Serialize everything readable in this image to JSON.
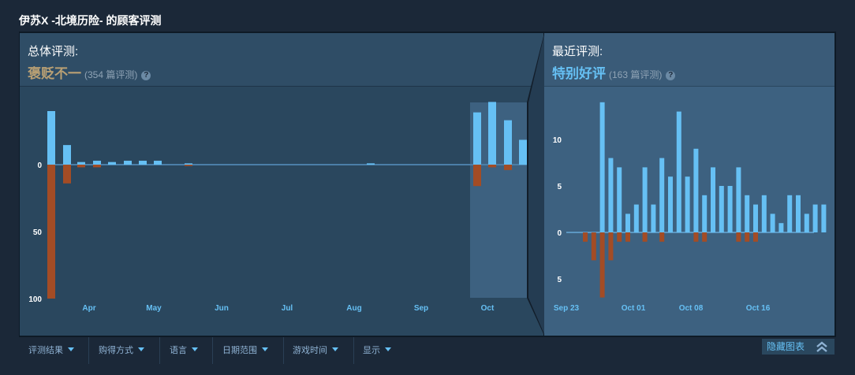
{
  "page_title": "伊苏X -北境历险- 的顾客评测",
  "overall": {
    "label": "总体评测:",
    "rating": "褒贬不一",
    "count": "(354 篇评测)",
    "help": "?"
  },
  "recent": {
    "label": "最近评测:",
    "rating": "特别好评",
    "count": "(163 篇评测)",
    "help": "?"
  },
  "filters": [
    "评测结果",
    "购得方式",
    "语言",
    "日期范围",
    "游戏时间",
    "显示"
  ],
  "hide_graph_label": "隐藏图表",
  "colors": {
    "positive": "#66c0f4",
    "negative": "#a34c25",
    "selection": "#3d6180"
  },
  "chart_data": [
    {
      "type": "bar",
      "title": "",
      "x_ticks": [
        "Apr",
        "May",
        "Jun",
        "Jul",
        "Aug",
        "Sep",
        "Oct"
      ],
      "y_ticks": [
        {
          "value": 0,
          "label": "0"
        },
        {
          "value": -50,
          "label": "50"
        },
        {
          "value": -100,
          "label": "100"
        }
      ],
      "ylim": [
        -100,
        42
      ],
      "series": [
        {
          "name": "positive",
          "values": [
            41,
            15,
            2,
            3,
            2,
            3,
            3,
            3,
            1,
            1,
            40,
            48,
            34,
            19
          ]
        },
        {
          "name": "negative",
          "values": [
            -100,
            -14,
            -2,
            -2,
            0,
            0,
            0,
            0,
            -1,
            0,
            -16,
            -2,
            -4,
            0
          ]
        }
      ]
    },
    {
      "type": "bar",
      "title": "",
      "x_ticks": [
        "Sep 23",
        "Oct 01",
        "Oct 08",
        "Oct 16"
      ],
      "y_ticks": [
        {
          "value": 10,
          "label": "10"
        },
        {
          "value": 5,
          "label": "5"
        },
        {
          "value": 0,
          "label": "0"
        },
        {
          "value": -5,
          "label": "5"
        }
      ],
      "ylim": [
        -7,
        14
      ],
      "series": [
        {
          "name": "positive",
          "values": [
            0,
            0,
            14,
            8,
            7,
            2,
            3,
            7,
            3,
            8,
            6,
            13,
            6,
            9,
            4,
            7,
            5,
            5,
            7,
            4,
            3,
            4,
            2,
            1,
            4,
            4,
            2,
            3,
            3
          ]
        },
        {
          "name": "negative",
          "values": [
            -1,
            -3,
            -7,
            -3,
            -1,
            -1,
            0,
            -1,
            0,
            -1,
            0,
            0,
            0,
            -1,
            -1,
            0,
            0,
            0,
            -1,
            -1,
            -1,
            0,
            0,
            0,
            0,
            0,
            0,
            0,
            0
          ]
        }
      ]
    }
  ]
}
